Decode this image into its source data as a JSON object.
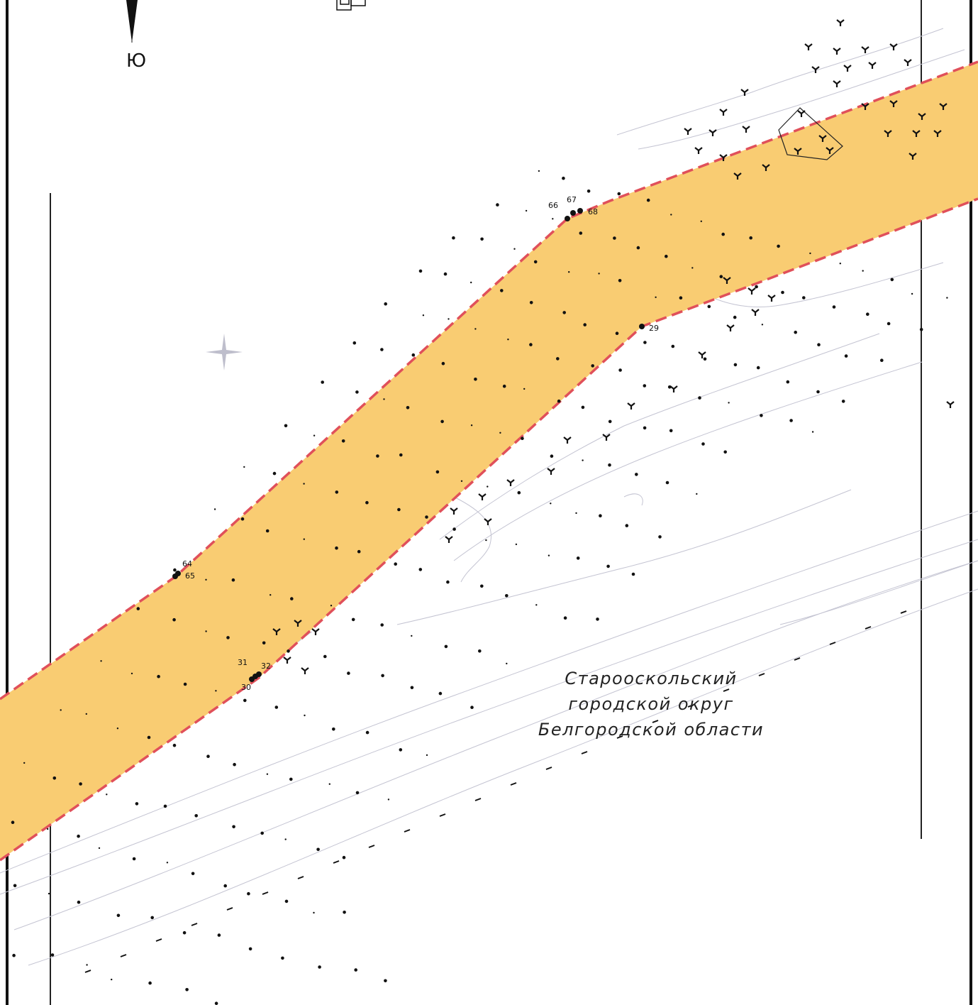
{
  "compass": {
    "south_label": "Ю"
  },
  "region_label": {
    "lines": [
      "Старооскольский",
      "городской округ",
      "Белгородской области"
    ]
  },
  "boundary_points": [
    {
      "id": "66",
      "label": "66"
    },
    {
      "id": "67",
      "label": "67"
    },
    {
      "id": "68",
      "label": "68"
    },
    {
      "id": "29",
      "label": "29"
    },
    {
      "id": "64",
      "label": "64"
    },
    {
      "id": "65",
      "label": "65"
    },
    {
      "id": "31",
      "label": "31"
    },
    {
      "id": "32",
      "label": "32"
    },
    {
      "id": "30",
      "label": "30"
    }
  ],
  "colors": {
    "zone_fill": "#F9CC72",
    "zone_border": "#E0505A",
    "frame": "#111111",
    "contours": "#B8B8C8",
    "symbols": "#111111",
    "cross_marker": "#B0B0C0"
  },
  "legend_symbols": [
    "forest-dot-icon",
    "shrub-icon",
    "north-arrow-icon",
    "grid-cross-icon"
  ]
}
